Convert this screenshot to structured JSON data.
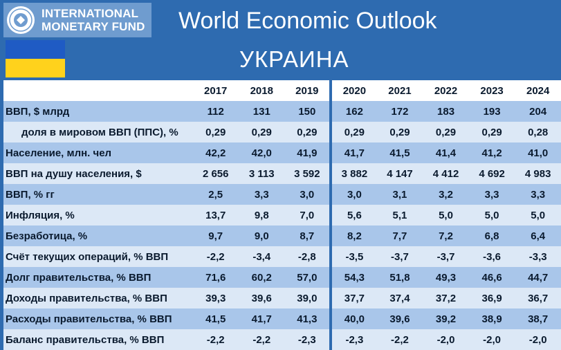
{
  "header": {
    "org_line1": "INTERNATIONAL",
    "org_line2": "MONETARY FUND",
    "title": "World Economic Outlook"
  },
  "country": "УКРАИНА",
  "flag": {
    "top_color": "#1f5bc4",
    "bottom_color": "#ffd21c"
  },
  "table": {
    "years": [
      "2017",
      "2018",
      "2019",
      "2020",
      "2021",
      "2022",
      "2023",
      "2024"
    ],
    "rows": [
      {
        "label": "ВВП, $ млрд",
        "values": [
          "112",
          "131",
          "150",
          "162",
          "172",
          "183",
          "193",
          "204"
        ]
      },
      {
        "label": "доля в мировом ВВП (ППС), %",
        "values": [
          "0,29",
          "0,29",
          "0,29",
          "0,29",
          "0,29",
          "0,29",
          "0,29",
          "0,28"
        ]
      },
      {
        "label": "Население, млн. чел",
        "values": [
          "42,2",
          "42,0",
          "41,9",
          "41,7",
          "41,5",
          "41,4",
          "41,2",
          "41,0"
        ]
      },
      {
        "label": "ВВП на душу населения, $",
        "values": [
          "2 656",
          "3 113",
          "3 592",
          "3 882",
          "4 147",
          "4 412",
          "4 692",
          "4 983"
        ]
      },
      {
        "label": "ВВП, % гг",
        "values": [
          "2,5",
          "3,3",
          "3,0",
          "3,0",
          "3,1",
          "3,2",
          "3,3",
          "3,3"
        ]
      },
      {
        "label": "Инфляция, %",
        "values": [
          "13,7",
          "9,8",
          "7,0",
          "5,6",
          "5,1",
          "5,0",
          "5,0",
          "5,0"
        ]
      },
      {
        "label": "Безработица, %",
        "values": [
          "9,7",
          "9,0",
          "8,7",
          "8,2",
          "7,7",
          "7,2",
          "6,8",
          "6,4"
        ]
      },
      {
        "label": "Счёт текущих операций, % ВВП",
        "values": [
          "-2,2",
          "-3,4",
          "-2,8",
          "-3,5",
          "-3,7",
          "-3,7",
          "-3,6",
          "-3,3"
        ]
      },
      {
        "label": "Долг правительства, % ВВП",
        "values": [
          "71,6",
          "60,2",
          "57,0",
          "54,3",
          "51,8",
          "49,3",
          "46,6",
          "44,7"
        ]
      },
      {
        "label": "Доходы правительства, % ВВП",
        "values": [
          "39,3",
          "39,6",
          "39,0",
          "37,7",
          "37,4",
          "37,2",
          "36,9",
          "36,7"
        ]
      },
      {
        "label": "Расходы правительства, % ВВП",
        "values": [
          "41,5",
          "41,7",
          "41,3",
          "40,0",
          "39,6",
          "39,2",
          "38,9",
          "38,7"
        ]
      },
      {
        "label": "Баланс правительства, % ВВП",
        "values": [
          "-2,2",
          "-2,2",
          "-2,3",
          "-2,3",
          "-2,2",
          "-2,0",
          "-2,0",
          "-2,0"
        ]
      }
    ]
  }
}
